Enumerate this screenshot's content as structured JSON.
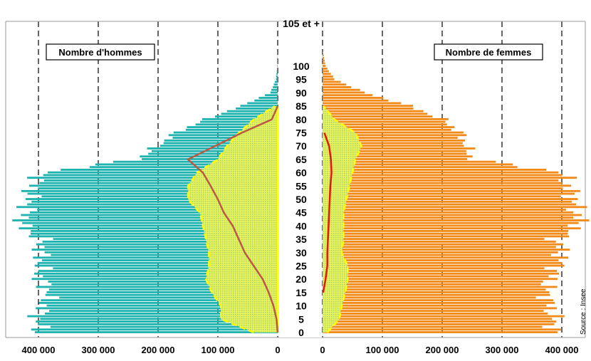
{
  "labels": {
    "men": "Nombre d'hommes",
    "women": "Nombre de femmes",
    "source": "Source : Insee"
  },
  "colors": {
    "men_bar": "#1fb3b0",
    "women_bar": "#f28a1a",
    "overlay_fill": "#e8f25a",
    "overlay_hatch": "#a8d36a",
    "overlay_border": "#ffff00",
    "line_men": "#b85a45",
    "line_women": "#e8150c",
    "grid": "#000000"
  },
  "chart_data": {
    "type": "bar",
    "subtype": "population-pyramid",
    "title": "",
    "xlabel": "",
    "ylabel": "",
    "age_tick_labels": [
      "0",
      "5",
      "10",
      "15",
      "20",
      "25",
      "30",
      "35",
      "40",
      "45",
      "50",
      "55",
      "60",
      "65",
      "70",
      "75",
      "80",
      "85",
      "90",
      "95",
      "100",
      "105 et +"
    ],
    "x_tick_labels_men": [
      "400 000",
      "300 000",
      "200 000",
      "100 000",
      "0"
    ],
    "x_tick_labels_women": [
      "0",
      "100 000",
      "200 000",
      "300 000",
      "400 000"
    ],
    "xlim": [
      0,
      400000
    ],
    "grid": "vertical-dashed",
    "age_step": 5,
    "series": [
      {
        "name": "Nombre d'hommes",
        "ages": [
          0,
          5,
          10,
          15,
          20,
          25,
          30,
          35,
          40,
          45,
          50,
          55,
          60,
          65,
          70,
          75,
          80,
          85,
          90,
          95,
          100,
          105
        ],
        "values": [
          398000,
          402000,
          392000,
          382000,
          398000,
          397000,
          396000,
          395000,
          430000,
          420000,
          415000,
          410000,
          390000,
          235000,
          200000,
          170000,
          120000,
          60000,
          12000,
          3000,
          800,
          200
        ]
      },
      {
        "name": "Nombre de femmes",
        "ages": [
          0,
          5,
          10,
          15,
          20,
          25,
          30,
          35,
          40,
          45,
          50,
          55,
          60,
          65,
          70,
          75,
          80,
          85,
          90,
          95,
          100,
          105
        ],
        "values": [
          385000,
          388000,
          380000,
          375000,
          380000,
          395000,
          400000,
          390000,
          430000,
          425000,
          420000,
          410000,
          400000,
          250000,
          240000,
          230000,
          200000,
          145000,
          70000,
          20000,
          5000,
          1000
        ]
      },
      {
        "name": "",
        "side": "men",
        "ages": [
          0,
          5,
          10,
          15,
          20,
          25,
          30,
          35,
          40,
          45,
          50,
          55,
          60,
          65,
          70,
          75,
          80,
          85
        ],
        "values": [
          40000,
          95000,
          95000,
          110000,
          120000,
          115000,
          115000,
          120000,
          125000,
          130000,
          150000,
          150000,
          135000,
          100000,
          85000,
          65000,
          40000,
          5000
        ]
      },
      {
        "name": "",
        "side": "women",
        "ages": [
          0,
          5,
          10,
          15,
          20,
          25,
          30,
          35,
          40,
          45,
          50,
          55,
          60,
          65,
          70,
          75,
          80,
          85
        ],
        "values": [
          8000,
          28000,
          32000,
          38000,
          42000,
          42000,
          32000,
          35000,
          35000,
          35000,
          40000,
          45000,
          50000,
          55000,
          65000,
          55000,
          20000,
          2000
        ]
      },
      {
        "name": "",
        "side": "men",
        "ages": [
          0,
          5,
          10,
          15,
          20,
          25,
          30,
          35,
          40,
          45,
          50,
          55,
          60,
          65,
          70,
          75,
          80,
          85
        ],
        "values": [
          0,
          2000,
          7000,
          15000,
          25000,
          40000,
          55000,
          65000,
          75000,
          90000,
          100000,
          112000,
          125000,
          150000,
          105000,
          60000,
          10000,
          0
        ]
      },
      {
        "name": "",
        "side": "women",
        "ages": [
          15,
          20,
          25,
          30,
          35,
          40,
          45,
          50,
          55,
          60,
          65,
          70,
          75
        ],
        "values": [
          1000,
          5000,
          8000,
          8000,
          9000,
          10000,
          11000,
          12000,
          13000,
          15000,
          14000,
          11000,
          3000
        ]
      }
    ]
  }
}
